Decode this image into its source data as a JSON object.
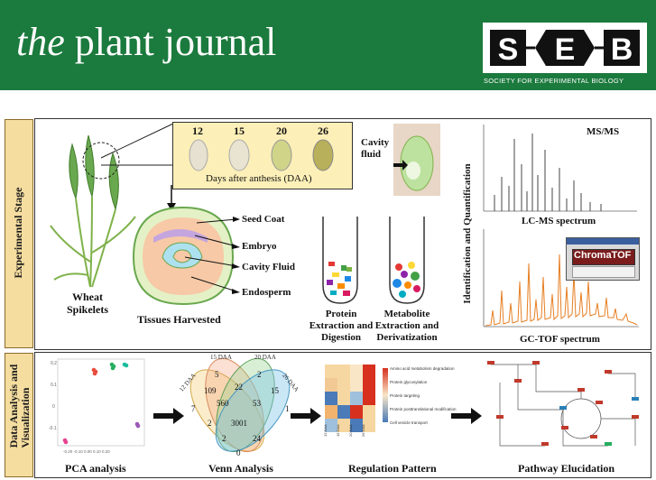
{
  "header": {
    "journal_the": "the",
    "journal_rest": "plant journal",
    "logo_letters": [
      "S",
      "E",
      "B"
    ],
    "logo_subtitle": "SOCIETY FOR EXPERIMENTAL BIOLOGY",
    "colors": {
      "header_bg": "#1b7a3d",
      "text": "#ffffff"
    }
  },
  "experimental": {
    "section_label": "Experimental Stage",
    "daa_days": [
      "12",
      "15",
      "20",
      "26"
    ],
    "daa_caption": "Days after anthesis (DAA)",
    "wheat_label_line1": "Wheat",
    "wheat_label_line2": "Spikelets",
    "tissues_label": "Tissues Harvested",
    "seed_parts": [
      "Seed Coat",
      "Embryo",
      "Cavity Fluid",
      "Endosperm"
    ],
    "cavity_label_line1": "Cavity",
    "cavity_label_line2": "fluid",
    "protein_label": [
      "Protein",
      "Extraction and",
      "Digestion"
    ],
    "metabolite_label": [
      "Metabolite",
      "Extraction and",
      "Derivatization"
    ],
    "ms_label": "MS/MS",
    "lcms_label": "LC-MS spectrum",
    "gctof_label": "GC-TOF spectrum",
    "chromatof_label": "ChromaTOF",
    "idq_label": "Identification and Quantification"
  },
  "analysis": {
    "section_label_line1": "Data Analysis and",
    "section_label_line2": "Visualization",
    "pca_label": "PCA analysis",
    "venn_label": "Venn Analysis",
    "regulation_label": "Regulation Pattern",
    "pathway_label": "Pathway Elucidation",
    "venn_sets": [
      "12 DAA",
      "15 DAA",
      "20 DAA",
      "26 DAA"
    ],
    "venn_values": [
      "5",
      "2",
      "109",
      "22",
      "15",
      "7",
      "560",
      "53",
      "1",
      "2",
      "3001",
      "2",
      "24",
      "0"
    ],
    "heatmap_rows": [
      "Amino acid metabolism degradation",
      "Protein glycosylation",
      "Protein targeting",
      "Protein posttranslational modification",
      "Cell vesicle transport"
    ],
    "heatmap_cols": [
      "12 DAA",
      "15 DAA",
      "20 DAA",
      "26 DAA"
    ]
  }
}
